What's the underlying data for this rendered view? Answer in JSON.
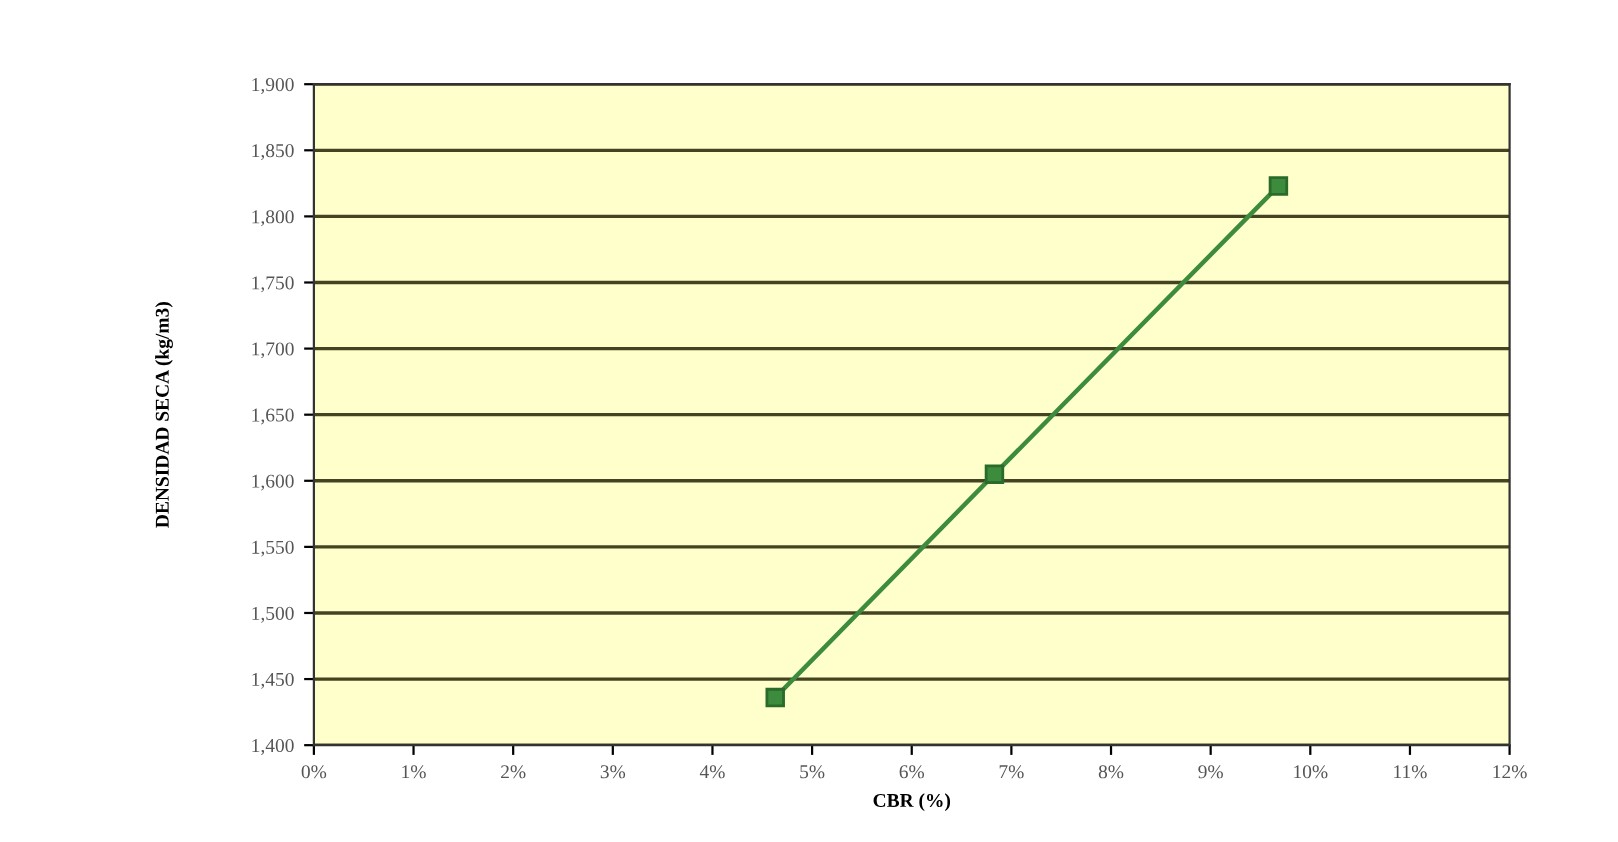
{
  "chart_data": {
    "type": "line",
    "xlabel": "CBR (%)",
    "ylabel": "DENSIDAD SECA (kg/m3)",
    "x": [
      4.63,
      6.83,
      9.68
    ],
    "series": [
      {
        "color": "#3d8b3d",
        "values": [
          1436,
          1605,
          1823
        ]
      }
    ],
    "xlim": [
      0,
      12
    ],
    "xticks": [
      {
        "value": 0,
        "label": "0%"
      },
      {
        "value": 1,
        "label": "1%"
      },
      {
        "value": 2,
        "label": "2%"
      },
      {
        "value": 3,
        "label": "3%"
      },
      {
        "value": 4,
        "label": "4%"
      },
      {
        "value": 5,
        "label": "5%"
      },
      {
        "value": 6,
        "label": "6%"
      },
      {
        "value": 7,
        "label": "7%"
      },
      {
        "value": 8,
        "label": "8%"
      },
      {
        "value": 9,
        "label": "9%"
      },
      {
        "value": 10,
        "label": "10%"
      },
      {
        "value": 11,
        "label": "11%"
      },
      {
        "value": 12,
        "label": "12%"
      }
    ],
    "ylim": [
      1400,
      1900
    ],
    "yticks": [
      {
        "value": 1400,
        "label": "1,400"
      },
      {
        "value": 1450,
        "label": "1,450"
      },
      {
        "value": 1500,
        "label": "1,500"
      },
      {
        "value": 1550,
        "label": "1,550"
      },
      {
        "value": 1600,
        "label": "1,600"
      },
      {
        "value": 1650,
        "label": "1,650"
      },
      {
        "value": 1700,
        "label": "1,700"
      },
      {
        "value": 1750,
        "label": "1,750"
      },
      {
        "value": 1800,
        "label": "1,800"
      },
      {
        "value": 1850,
        "label": "1,850"
      },
      {
        "value": 1900,
        "label": "1,900"
      }
    ],
    "grid": "y",
    "marker": "square",
    "line_style": "solid",
    "legend": false
  }
}
